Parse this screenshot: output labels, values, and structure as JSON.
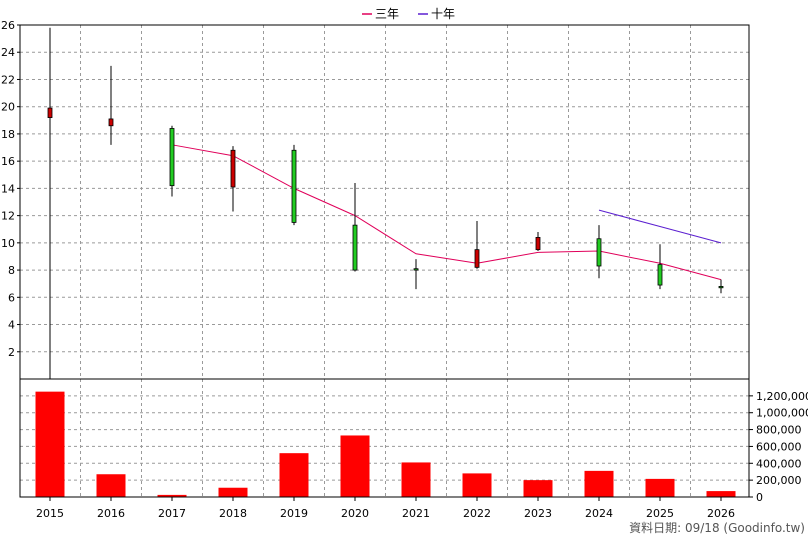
{
  "legend": [
    {
      "label": "三年",
      "color": "#e0005a"
    },
    {
      "label": "十年",
      "color": "#5b1fd0"
    }
  ],
  "footer": "資料日期: 09/18  (Goodinfo.tw)",
  "chart_data": {
    "type": "candlestick+bar",
    "years": [
      "2015",
      "2016",
      "2017",
      "2018",
      "2019",
      "2020",
      "2021",
      "2022",
      "2023",
      "2024",
      "2025",
      "2026"
    ],
    "price_axis": {
      "ylim": [
        0,
        26
      ],
      "ticks": [
        2,
        4,
        6,
        8,
        10,
        12,
        14,
        16,
        18,
        20,
        22,
        24,
        26
      ]
    },
    "volume_axis": {
      "ylim": [
        0,
        1400000
      ],
      "ticks": [
        0,
        200000,
        400000,
        600000,
        800000,
        1000000,
        1200000
      ],
      "tick_labels": [
        "0",
        "200,000",
        "400,000",
        "600,000",
        "800,000",
        "1,000,000",
        "1,200,000"
      ]
    },
    "candles": [
      {
        "year": "2015",
        "open": 19.2,
        "close": 19.9,
        "high": 25.8,
        "low": 0.0
      },
      {
        "year": "2016",
        "open": 18.6,
        "close": 19.1,
        "high": 23.0,
        "low": 17.2
      },
      {
        "year": "2017",
        "open": 18.4,
        "close": 14.2,
        "high": 18.6,
        "low": 13.4
      },
      {
        "year": "2018",
        "open": 14.1,
        "close": 16.8,
        "high": 17.1,
        "low": 12.3
      },
      {
        "year": "2019",
        "open": 16.8,
        "close": 11.5,
        "high": 17.2,
        "low": 11.3
      },
      {
        "year": "2020",
        "open": 11.3,
        "close": 8.0,
        "high": 14.4,
        "low": 7.9
      },
      {
        "year": "2021",
        "open": 8.1,
        "close": 8.0,
        "high": 8.8,
        "low": 6.6
      },
      {
        "year": "2022",
        "open": 8.2,
        "close": 9.5,
        "high": 11.6,
        "low": 8.1
      },
      {
        "year": "2023",
        "open": 9.5,
        "close": 10.4,
        "high": 10.8,
        "low": 9.4
      },
      {
        "year": "2024",
        "open": 10.3,
        "close": 8.3,
        "high": 11.3,
        "low": 7.4
      },
      {
        "year": "2025",
        "open": 8.4,
        "close": 6.9,
        "high": 9.9,
        "low": 6.6
      },
      {
        "year": "2026",
        "open": 6.8,
        "close": 6.7,
        "high": 7.3,
        "low": 6.3
      }
    ],
    "ma3": {
      "years": [
        "2017",
        "2018",
        "2019",
        "2020",
        "2021",
        "2022",
        "2023",
        "2024",
        "2025",
        "2026"
      ],
      "values": [
        17.2,
        16.4,
        14.0,
        12.0,
        9.2,
        8.5,
        9.3,
        9.4,
        8.5,
        7.3
      ]
    },
    "ma10": {
      "years": [
        "2024",
        "2025",
        "2026"
      ],
      "values": [
        12.4,
        11.2,
        10.0
      ]
    },
    "volume": [
      1250000,
      270000,
      25000,
      110000,
      520000,
      730000,
      410000,
      280000,
      200000,
      310000,
      215000,
      70000
    ]
  }
}
